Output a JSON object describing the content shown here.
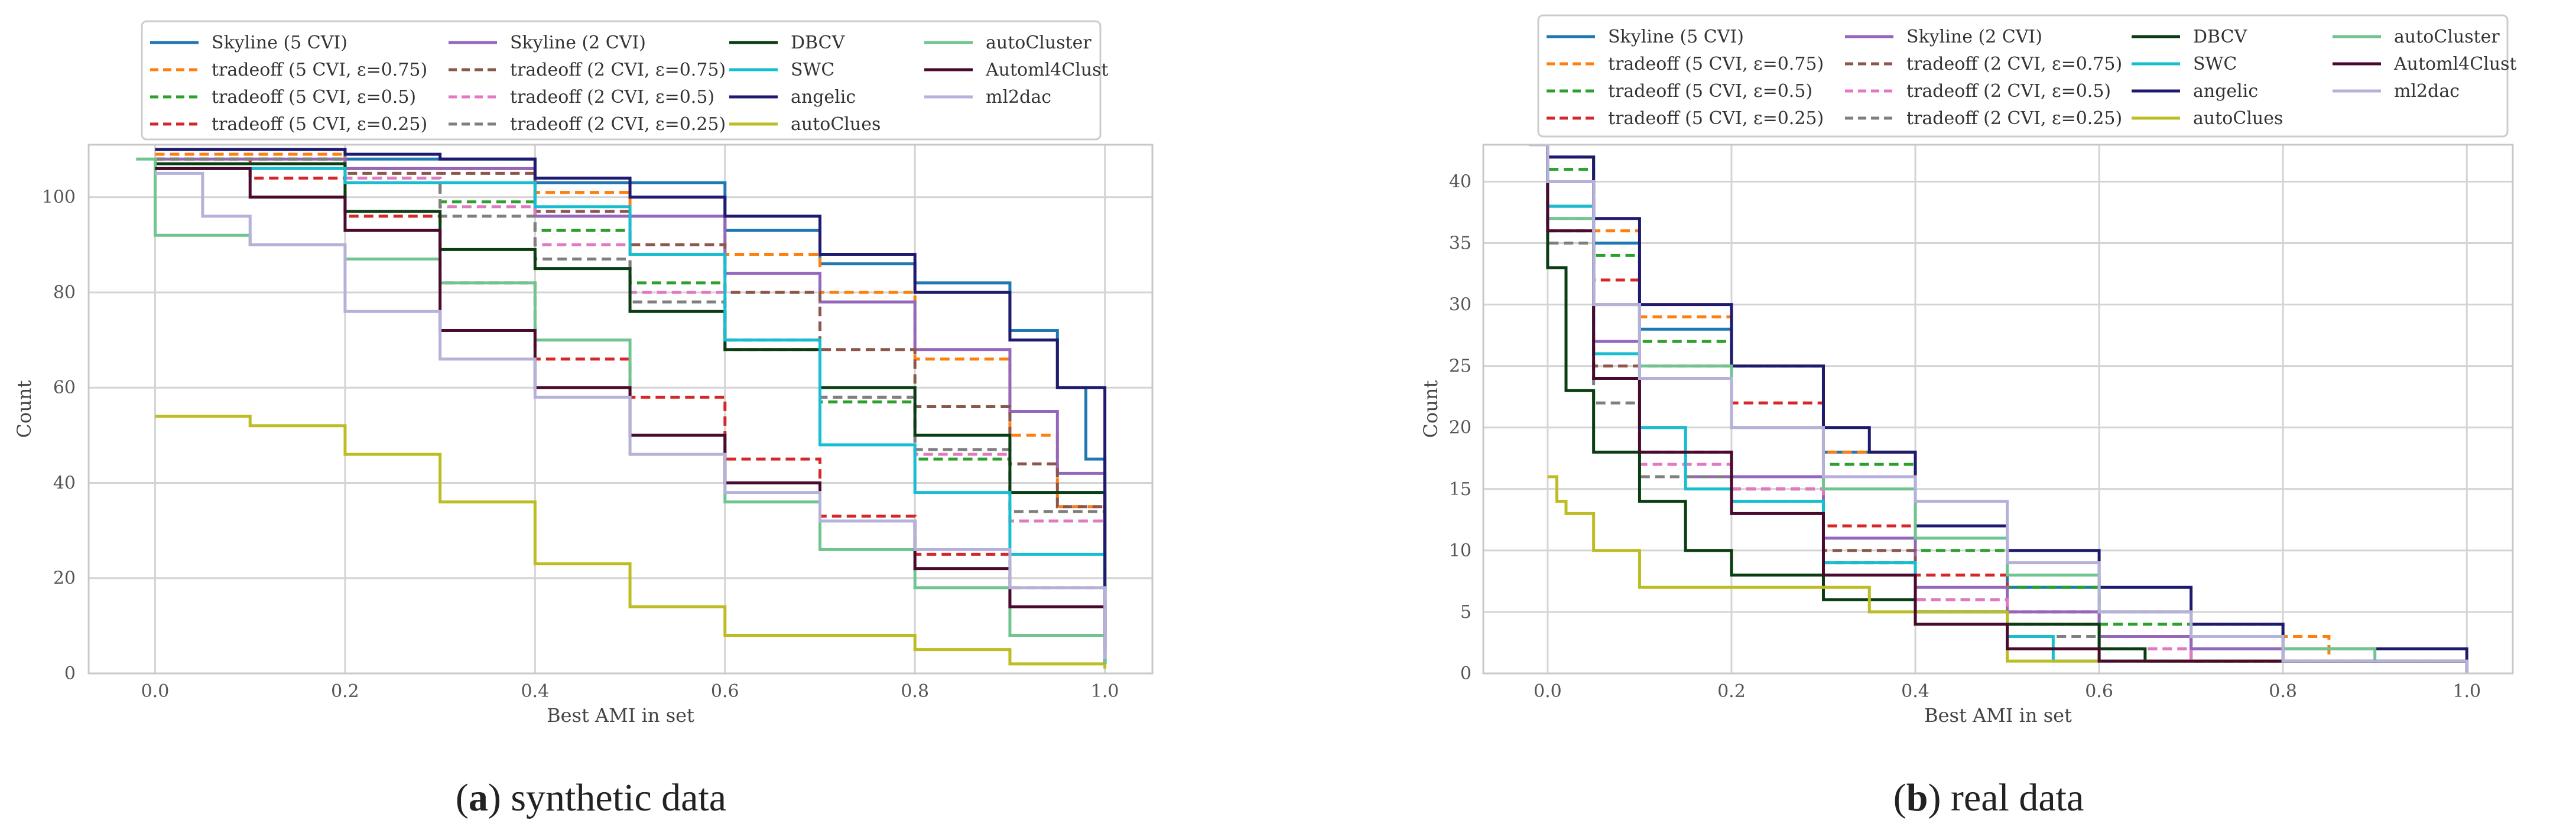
{
  "captions": [
    {
      "letter": "a",
      "text": ") synthetic data"
    },
    {
      "letter": "b",
      "text": ") real data"
    }
  ],
  "chart_data": [
    {
      "type": "line",
      "panel": "a",
      "xlabel": "Best AMI in set",
      "ylabel": "Count",
      "xlim": [
        -0.07,
        1.05
      ],
      "ylim": [
        0,
        111
      ],
      "xticks": [
        0.0,
        0.2,
        0.4,
        0.6,
        0.8,
        1.0
      ],
      "xtick_labels": [
        "0.0",
        "0.2",
        "0.4",
        "0.6",
        "0.8",
        "1.0"
      ],
      "yticks": [
        0,
        20,
        40,
        60,
        80,
        100
      ],
      "ytick_labels": [
        "0",
        "20",
        "40",
        "60",
        "80",
        "100"
      ],
      "grid": true,
      "legend_position": "top-center",
      "series": [
        {
          "name": "Skyline (5 CVI)",
          "color": "#1f77b4",
          "dash": "solid",
          "x": [
            0.0,
            0.2,
            0.4,
            0.6,
            0.7,
            0.8,
            0.9,
            0.95,
            0.98,
            1.0
          ],
          "y": [
            110,
            108,
            103,
            93,
            86,
            82,
            72,
            60,
            45,
            2
          ]
        },
        {
          "name": "tradeoff (5 CVI, ε=0.75)",
          "color": "#ff7f0e",
          "dash": "dashed",
          "x": [
            0.0,
            0.2,
            0.4,
            0.5,
            0.6,
            0.7,
            0.8,
            0.9,
            0.95,
            1.0
          ],
          "y": [
            109,
            106,
            101,
            96,
            88,
            80,
            66,
            50,
            35,
            2
          ]
        },
        {
          "name": "tradeoff (5 CVI, ε=0.5)",
          "color": "#2ca02c",
          "dash": "dashed",
          "x": [
            0.0,
            0.2,
            0.3,
            0.4,
            0.5,
            0.6,
            0.7,
            0.8,
            0.9,
            1.0
          ],
          "y": [
            108,
            104,
            99,
            93,
            82,
            70,
            57,
            45,
            32,
            2
          ]
        },
        {
          "name": "tradeoff (5 CVI, ε=0.25)",
          "color": "#d62728",
          "dash": "dashed",
          "x": [
            0.0,
            0.1,
            0.2,
            0.3,
            0.4,
            0.5,
            0.6,
            0.7,
            0.8,
            0.9,
            1.0
          ],
          "y": [
            108,
            104,
            96,
            82,
            66,
            58,
            45,
            33,
            25,
            18,
            2
          ]
        },
        {
          "name": "Skyline (2 CVI)",
          "color": "#9467bd",
          "dash": "solid",
          "x": [
            0.0,
            0.2,
            0.4,
            0.6,
            0.7,
            0.8,
            0.9,
            0.95,
            1.0
          ],
          "y": [
            108,
            106,
            96,
            84,
            78,
            68,
            55,
            42,
            2
          ]
        },
        {
          "name": "tradeoff (2 CVI, ε=0.75)",
          "color": "#8c564b",
          "dash": "dashed",
          "x": [
            0.0,
            0.2,
            0.4,
            0.5,
            0.6,
            0.7,
            0.8,
            0.9,
            0.95,
            1.0
          ],
          "y": [
            108,
            105,
            97,
            90,
            80,
            68,
            56,
            44,
            35,
            2
          ]
        },
        {
          "name": "tradeoff (2 CVI, ε=0.5)",
          "color": "#e377c2",
          "dash": "dashed",
          "x": [
            0.0,
            0.2,
            0.3,
            0.4,
            0.5,
            0.6,
            0.7,
            0.8,
            0.9,
            1.0
          ],
          "y": [
            108,
            104,
            98,
            90,
            80,
            70,
            58,
            46,
            32,
            2
          ]
        },
        {
          "name": "tradeoff (2 CVI, ε=0.25)",
          "color": "#7f7f7f",
          "dash": "dashed",
          "x": [
            0.0,
            0.2,
            0.3,
            0.4,
            0.5,
            0.6,
            0.7,
            0.8,
            0.9,
            1.0
          ],
          "y": [
            108,
            103,
            96,
            87,
            78,
            68,
            58,
            47,
            34,
            2
          ]
        },
        {
          "name": "DBCV",
          "color": "#0b3d12",
          "dash": "solid",
          "x": [
            0.0,
            0.2,
            0.3,
            0.4,
            0.5,
            0.6,
            0.7,
            0.8,
            0.9,
            1.0
          ],
          "y": [
            107,
            97,
            89,
            85,
            76,
            68,
            60,
            50,
            38,
            2
          ]
        },
        {
          "name": "SWC",
          "color": "#17becf",
          "dash": "solid",
          "x": [
            0.0,
            0.2,
            0.4,
            0.5,
            0.6,
            0.7,
            0.8,
            0.9,
            1.0
          ],
          "y": [
            106,
            103,
            98,
            88,
            70,
            48,
            38,
            25,
            2
          ]
        },
        {
          "name": "angelic",
          "color": "#1f1a6e",
          "dash": "solid",
          "x": [
            0.0,
            0.2,
            0.3,
            0.4,
            0.5,
            0.6,
            0.7,
            0.8,
            0.9,
            0.95,
            1.0
          ],
          "y": [
            110,
            109,
            108,
            104,
            100,
            96,
            88,
            80,
            70,
            60,
            2
          ]
        },
        {
          "name": "autoClues",
          "color": "#bcbd22",
          "dash": "solid",
          "x": [
            0.0,
            0.05,
            0.1,
            0.2,
            0.3,
            0.4,
            0.5,
            0.6,
            0.8,
            0.9,
            1.0
          ],
          "y": [
            54,
            54,
            52,
            46,
            36,
            23,
            14,
            8,
            5,
            2,
            1
          ]
        },
        {
          "name": "autoCluster",
          "color": "#6fc48f",
          "dash": "solid",
          "x": [
            -0.02,
            0.0,
            0.1,
            0.2,
            0.3,
            0.4,
            0.5,
            0.6,
            0.7,
            0.8,
            0.9,
            1.0
          ],
          "y": [
            108,
            92,
            90,
            87,
            82,
            70,
            50,
            36,
            26,
            18,
            8,
            2
          ]
        },
        {
          "name": "Automl4Clust",
          "color": "#4a0a2e",
          "dash": "solid",
          "x": [
            0.0,
            0.1,
            0.2,
            0.3,
            0.4,
            0.5,
            0.6,
            0.7,
            0.8,
            0.9,
            1.0
          ],
          "y": [
            106,
            100,
            93,
            72,
            60,
            50,
            40,
            32,
            22,
            14,
            5
          ]
        },
        {
          "name": "ml2dac",
          "color": "#b5b1da",
          "dash": "solid",
          "x": [
            0.0,
            0.05,
            0.1,
            0.2,
            0.3,
            0.4,
            0.5,
            0.6,
            0.7,
            0.8,
            0.9,
            1.0
          ],
          "y": [
            105,
            96,
            90,
            76,
            66,
            58,
            46,
            38,
            32,
            26,
            18,
            3
          ]
        }
      ]
    },
    {
      "type": "line",
      "panel": "b",
      "xlabel": "Best AMI in set",
      "ylabel": "Count",
      "xlim": [
        -0.07,
        1.05
      ],
      "ylim": [
        0,
        43
      ],
      "xticks": [
        0.0,
        0.2,
        0.4,
        0.6,
        0.8,
        1.0
      ],
      "xtick_labels": [
        "0.0",
        "0.2",
        "0.4",
        "0.6",
        "0.8",
        "1.0"
      ],
      "yticks": [
        0,
        5,
        10,
        15,
        20,
        25,
        30,
        35,
        40
      ],
      "ytick_labels": [
        "0",
        "5",
        "10",
        "15",
        "20",
        "25",
        "30",
        "35",
        "40"
      ],
      "grid": true,
      "legend_position": "top-center",
      "series": [
        {
          "name": "Skyline (5 CVI)",
          "color": "#1f77b4",
          "dash": "solid",
          "x": [
            -0.02,
            0.0,
            0.05,
            0.1,
            0.2,
            0.3,
            0.4,
            0.5,
            0.6,
            0.7,
            0.8,
            1.0
          ],
          "y": [
            43,
            42,
            35,
            28,
            25,
            18,
            11,
            7,
            3,
            2,
            1,
            0
          ]
        },
        {
          "name": "tradeoff (5 CVI, ε=0.75)",
          "color": "#ff7f0e",
          "dash": "dashed",
          "x": [
            -0.02,
            0.0,
            0.05,
            0.1,
            0.2,
            0.3,
            0.4,
            0.5,
            0.6,
            0.7,
            0.85,
            1.0
          ],
          "y": [
            43,
            42,
            36,
            29,
            25,
            18,
            11,
            8,
            5,
            3,
            1,
            0
          ]
        },
        {
          "name": "tradeoff (5 CVI, ε=0.5)",
          "color": "#2ca02c",
          "dash": "dashed",
          "x": [
            -0.02,
            0.0,
            0.05,
            0.1,
            0.2,
            0.3,
            0.4,
            0.5,
            0.6,
            0.8,
            1.0
          ],
          "y": [
            43,
            41,
            34,
            27,
            25,
            17,
            10,
            7,
            4,
            1,
            0
          ]
        },
        {
          "name": "tradeoff (5 CVI, ε=0.25)",
          "color": "#d62728",
          "dash": "dashed",
          "x": [
            -0.02,
            0.0,
            0.05,
            0.1,
            0.2,
            0.3,
            0.4,
            0.5,
            0.6,
            0.7,
            1.0
          ],
          "y": [
            43,
            40,
            32,
            25,
            22,
            12,
            8,
            5,
            3,
            1,
            0
          ]
        },
        {
          "name": "Skyline (2 CVI)",
          "color": "#9467bd",
          "dash": "solid",
          "x": [
            -0.02,
            0.0,
            0.05,
            0.1,
            0.15,
            0.2,
            0.3,
            0.4,
            0.5,
            0.6,
            0.7,
            0.8,
            1.0
          ],
          "y": [
            43,
            38,
            27,
            20,
            16,
            16,
            11,
            7,
            5,
            3,
            2,
            1,
            0
          ]
        },
        {
          "name": "tradeoff (2 CVI, ε=0.75)",
          "color": "#8c564b",
          "dash": "dashed",
          "x": [
            -0.02,
            0.0,
            0.05,
            0.1,
            0.2,
            0.3,
            0.4,
            0.5,
            0.6,
            0.7,
            1.0
          ],
          "y": [
            43,
            37,
            25,
            18,
            15,
            10,
            6,
            4,
            2,
            1,
            0
          ]
        },
        {
          "name": "tradeoff (2 CVI, ε=0.5)",
          "color": "#e377c2",
          "dash": "dashed",
          "x": [
            -0.02,
            0.0,
            0.05,
            0.1,
            0.2,
            0.3,
            0.4,
            0.5,
            0.6,
            0.7,
            1.0
          ],
          "y": [
            43,
            36,
            24,
            17,
            15,
            9,
            6,
            4,
            2,
            1,
            0
          ]
        },
        {
          "name": "tradeoff (2 CVI, ε=0.25)",
          "color": "#7f7f7f",
          "dash": "dashed",
          "x": [
            -0.02,
            0.0,
            0.05,
            0.1,
            0.2,
            0.3,
            0.4,
            0.5,
            0.6,
            1.0
          ],
          "y": [
            43,
            35,
            22,
            16,
            14,
            9,
            5,
            3,
            1,
            0
          ]
        },
        {
          "name": "DBCV",
          "color": "#0b3d12",
          "dash": "solid",
          "x": [
            -0.02,
            0.0,
            0.02,
            0.05,
            0.1,
            0.15,
            0.2,
            0.3,
            0.4,
            0.5,
            0.6,
            0.65,
            1.0
          ],
          "y": [
            43,
            33,
            23,
            18,
            14,
            10,
            8,
            6,
            5,
            4,
            2,
            1,
            0
          ]
        },
        {
          "name": "SWC",
          "color": "#17becf",
          "dash": "solid",
          "x": [
            -0.02,
            0.0,
            0.05,
            0.1,
            0.15,
            0.2,
            0.3,
            0.4,
            0.5,
            0.55,
            1.0
          ],
          "y": [
            43,
            38,
            26,
            20,
            15,
            14,
            9,
            5,
            3,
            1,
            0
          ]
        },
        {
          "name": "angelic",
          "color": "#1f1a6e",
          "dash": "solid",
          "x": [
            -0.02,
            0.0,
            0.05,
            0.1,
            0.2,
            0.3,
            0.35,
            0.4,
            0.5,
            0.6,
            0.7,
            0.8,
            1.0
          ],
          "y": [
            43,
            42,
            37,
            30,
            25,
            20,
            18,
            12,
            10,
            7,
            4,
            2,
            0
          ]
        },
        {
          "name": "autoClues",
          "color": "#bcbd22",
          "dash": "solid",
          "x": [
            0.0,
            0.01,
            0.02,
            0.05,
            0.1,
            0.2,
            0.3,
            0.35,
            0.5,
            1.0
          ],
          "y": [
            16,
            14,
            13,
            10,
            7,
            7,
            7,
            5,
            1,
            0
          ]
        },
        {
          "name": "autoCluster",
          "color": "#6fc48f",
          "dash": "solid",
          "x": [
            -0.02,
            0.0,
            0.05,
            0.1,
            0.2,
            0.3,
            0.4,
            0.5,
            0.6,
            0.7,
            0.8,
            0.9,
            1.0
          ],
          "y": [
            43,
            37,
            30,
            25,
            20,
            15,
            11,
            8,
            5,
            3,
            2,
            1,
            0
          ]
        },
        {
          "name": "Automl4Clust",
          "color": "#4a0a2e",
          "dash": "solid",
          "x": [
            -0.02,
            0.0,
            0.05,
            0.1,
            0.2,
            0.3,
            0.4,
            0.5,
            0.6,
            1.0
          ],
          "y": [
            43,
            36,
            24,
            18,
            13,
            8,
            4,
            2,
            1,
            0
          ]
        },
        {
          "name": "ml2dac",
          "color": "#b5b1da",
          "dash": "solid",
          "x": [
            -0.02,
            0.0,
            0.05,
            0.1,
            0.2,
            0.3,
            0.4,
            0.5,
            0.6,
            0.7,
            0.8,
            1.0
          ],
          "y": [
            43,
            40,
            30,
            24,
            20,
            16,
            14,
            9,
            5,
            3,
            1,
            0
          ]
        }
      ]
    }
  ]
}
